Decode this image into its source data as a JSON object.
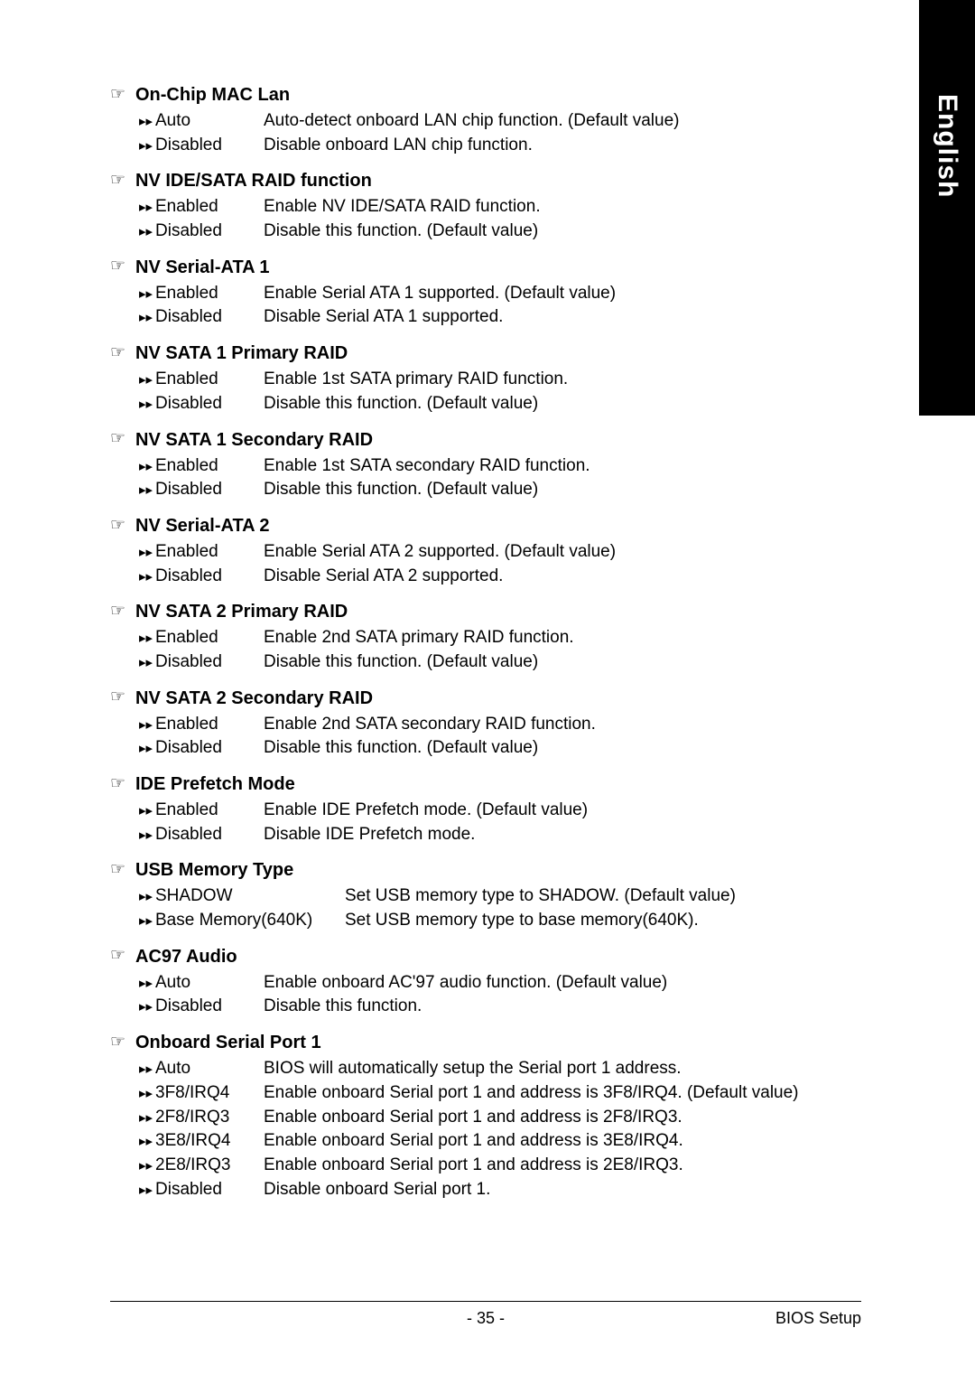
{
  "tab_text": "English",
  "sections": [
    {
      "title": "On-Chip MAC Lan",
      "wide": false,
      "rows": [
        {
          "opt": "Auto",
          "desc": "Auto-detect onboard LAN chip function. (Default value)"
        },
        {
          "opt": "Disabled",
          "desc": "Disable onboard LAN chip function."
        }
      ]
    },
    {
      "title": "NV IDE/SATA RAID function",
      "wide": false,
      "rows": [
        {
          "opt": "Enabled",
          "desc": "Enable NV IDE/SATA RAID function."
        },
        {
          "opt": "Disabled",
          "desc": "Disable this function. (Default value)"
        }
      ]
    },
    {
      "title": "NV Serial-ATA 1",
      "wide": false,
      "rows": [
        {
          "opt": "Enabled",
          "desc": "Enable Serial ATA 1 supported. (Default value)"
        },
        {
          "opt": "Disabled",
          "desc": "Disable Serial ATA 1 supported."
        }
      ]
    },
    {
      "title": "NV SATA 1 Primary RAID",
      "wide": false,
      "rows": [
        {
          "opt": "Enabled",
          "desc": "Enable 1st SATA primary RAID function."
        },
        {
          "opt": "Disabled",
          "desc": "Disable this function. (Default value)"
        }
      ]
    },
    {
      "title": "NV SATA 1 Secondary RAID",
      "wide": false,
      "rows": [
        {
          "opt": "Enabled",
          "desc": "Enable 1st SATA secondary RAID function."
        },
        {
          "opt": "Disabled",
          "desc": "Disable this function. (Default value)"
        }
      ]
    },
    {
      "title": "NV Serial-ATA 2",
      "wide": false,
      "rows": [
        {
          "opt": "Enabled",
          "desc": "Enable Serial ATA 2 supported. (Default value)"
        },
        {
          "opt": "Disabled",
          "desc": "Disable Serial ATA 2 supported."
        }
      ]
    },
    {
      "title": "NV SATA 2 Primary RAID",
      "wide": false,
      "rows": [
        {
          "opt": "Enabled",
          "desc": "Enable 2nd SATA primary RAID function."
        },
        {
          "opt": "Disabled",
          "desc": "Disable this function. (Default value)"
        }
      ]
    },
    {
      "title": "NV SATA 2 Secondary RAID",
      "wide": false,
      "rows": [
        {
          "opt": "Enabled",
          "desc": "Enable 2nd SATA secondary RAID function."
        },
        {
          "opt": "Disabled",
          "desc": "Disable this function. (Default value)"
        }
      ]
    },
    {
      "title": "IDE Prefetch Mode",
      "wide": false,
      "rows": [
        {
          "opt": "Enabled",
          "desc": "Enable IDE Prefetch mode. (Default value)"
        },
        {
          "opt": "Disabled",
          "desc": "Disable IDE Prefetch mode."
        }
      ]
    },
    {
      "title": "USB Memory Type",
      "wide": true,
      "rows": [
        {
          "opt": "SHADOW",
          "desc": "Set USB memory type to SHADOW. (Default value)"
        },
        {
          "opt": "Base Memory(640K)",
          "desc": "Set USB memory type to base memory(640K)."
        }
      ]
    },
    {
      "title": "AC97 Audio",
      "wide": false,
      "rows": [
        {
          "opt": "Auto",
          "desc": "Enable onboard AC'97 audio function. (Default value)"
        },
        {
          "opt": "Disabled",
          "desc": "Disable this function."
        }
      ]
    },
    {
      "title": "Onboard Serial Port 1",
      "wide": false,
      "rows": [
        {
          "opt": "Auto",
          "desc": "BIOS will automatically setup the Serial port 1 address."
        },
        {
          "opt": "3F8/IRQ4",
          "desc": "Enable onboard Serial port 1 and address is 3F8/IRQ4. (Default value)"
        },
        {
          "opt": "2F8/IRQ3",
          "desc": "Enable onboard Serial port 1 and address is 2F8/IRQ3."
        },
        {
          "opt": "3E8/IRQ4",
          "desc": "Enable onboard Serial port 1 and address is 3E8/IRQ4."
        },
        {
          "opt": "2E8/IRQ3",
          "desc": "Enable onboard Serial port 1 and address is 2E8/IRQ3."
        },
        {
          "opt": "Disabled",
          "desc": "Disable onboard Serial port 1."
        }
      ]
    }
  ],
  "glyphs": {
    "hand": "☞",
    "arr": "▸▸"
  },
  "footer": {
    "page": "- 35 -",
    "right": "BIOS Setup"
  }
}
